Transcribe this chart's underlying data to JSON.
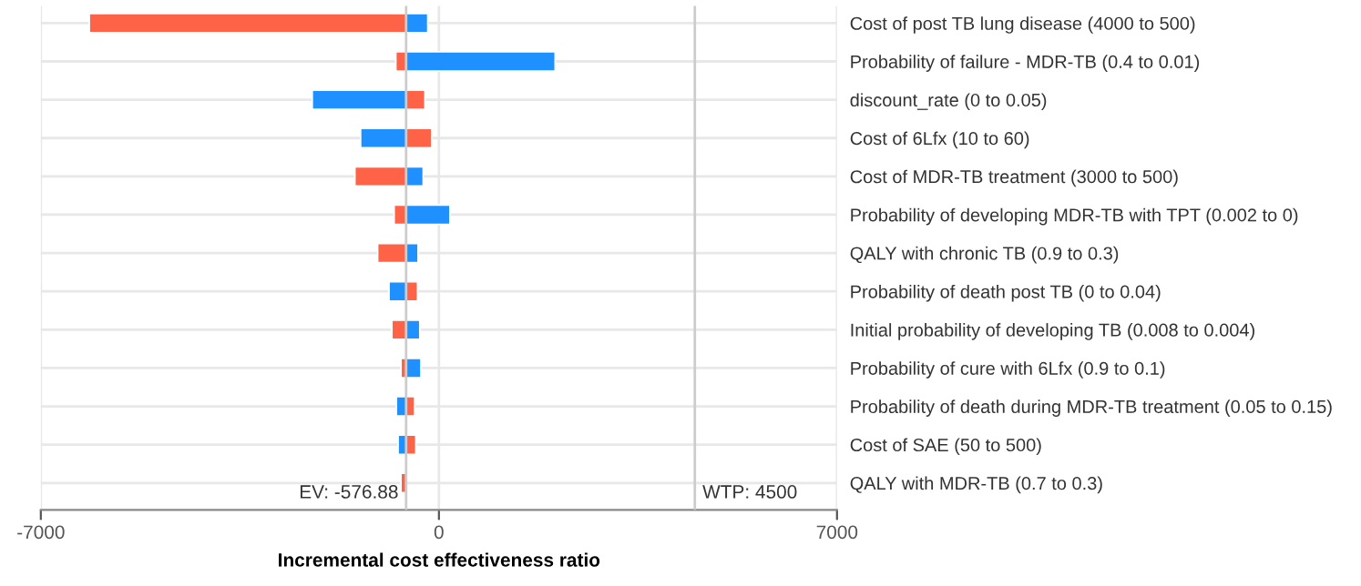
{
  "chart_data": {
    "type": "bar",
    "orientation": "horizontal",
    "xlabel": "Incremental cost effectiveness ratio",
    "categories": [
      "Cost of post TB lung disease (4000 to 500)",
      "Probability of failure - MDR-TB (0.4 to 0.01)",
      "discount_rate (0 to 0.05)",
      "Cost of 6Lfx (10 to 60)",
      "Cost of MDR-TB treatment (3000 to 500)",
      "Probability of developing MDR-TB with TPT (0.002 to 0)",
      "QALY with chronic TB (0.9 to 0.3)",
      "Probability of death post TB (0 to 0.04)",
      "Initial probability of developing TB (0.008 to 0.004)",
      "Probability of cure with 6Lfx (0.9 to 0.1)",
      "Probability of death during MDR-TB treatment (0.05 to 0.15)",
      "Cost of SAE (50 to 500)",
      "QALY with MDR-TB (0.7 to 0.3)"
    ],
    "series": [
      {
        "color": "#ff6347",
        "base": [
          -576.88,
          -576.88,
          -576.88,
          -576.88,
          -576.88,
          -576.88,
          -576.88,
          -576.88,
          -576.88,
          -576.88,
          -576.88,
          -576.88,
          -576.88
        ],
        "values": [
          -5570,
          -180,
          330,
          450,
          -900,
          -210,
          -500,
          200,
          -250,
          -90,
          150,
          170,
          -90
        ]
      },
      {
        "color": "#1e90ff",
        "base": [
          -576.88,
          -576.88,
          -576.88,
          -576.88,
          -576.88,
          -576.88,
          -576.88,
          -576.88,
          -576.88,
          -576.88,
          -576.88,
          -576.88,
          null
        ],
        "values": [
          380,
          2620,
          -1650,
          -800,
          300,
          770,
          210,
          -300,
          240,
          260,
          -170,
          -140,
          null
        ]
      }
    ],
    "xlim": [
      -7000,
      7000
    ],
    "xticks": [
      -7000,
      0,
      7000
    ],
    "grid": true,
    "ref_lines": [
      {
        "axis": "x",
        "value": -576.88,
        "label": "EV: -576.88",
        "color": "#cccccc"
      },
      {
        "axis": "x",
        "value": 4500,
        "label": "WTP: 4500",
        "color": "#cccccc"
      }
    ]
  }
}
